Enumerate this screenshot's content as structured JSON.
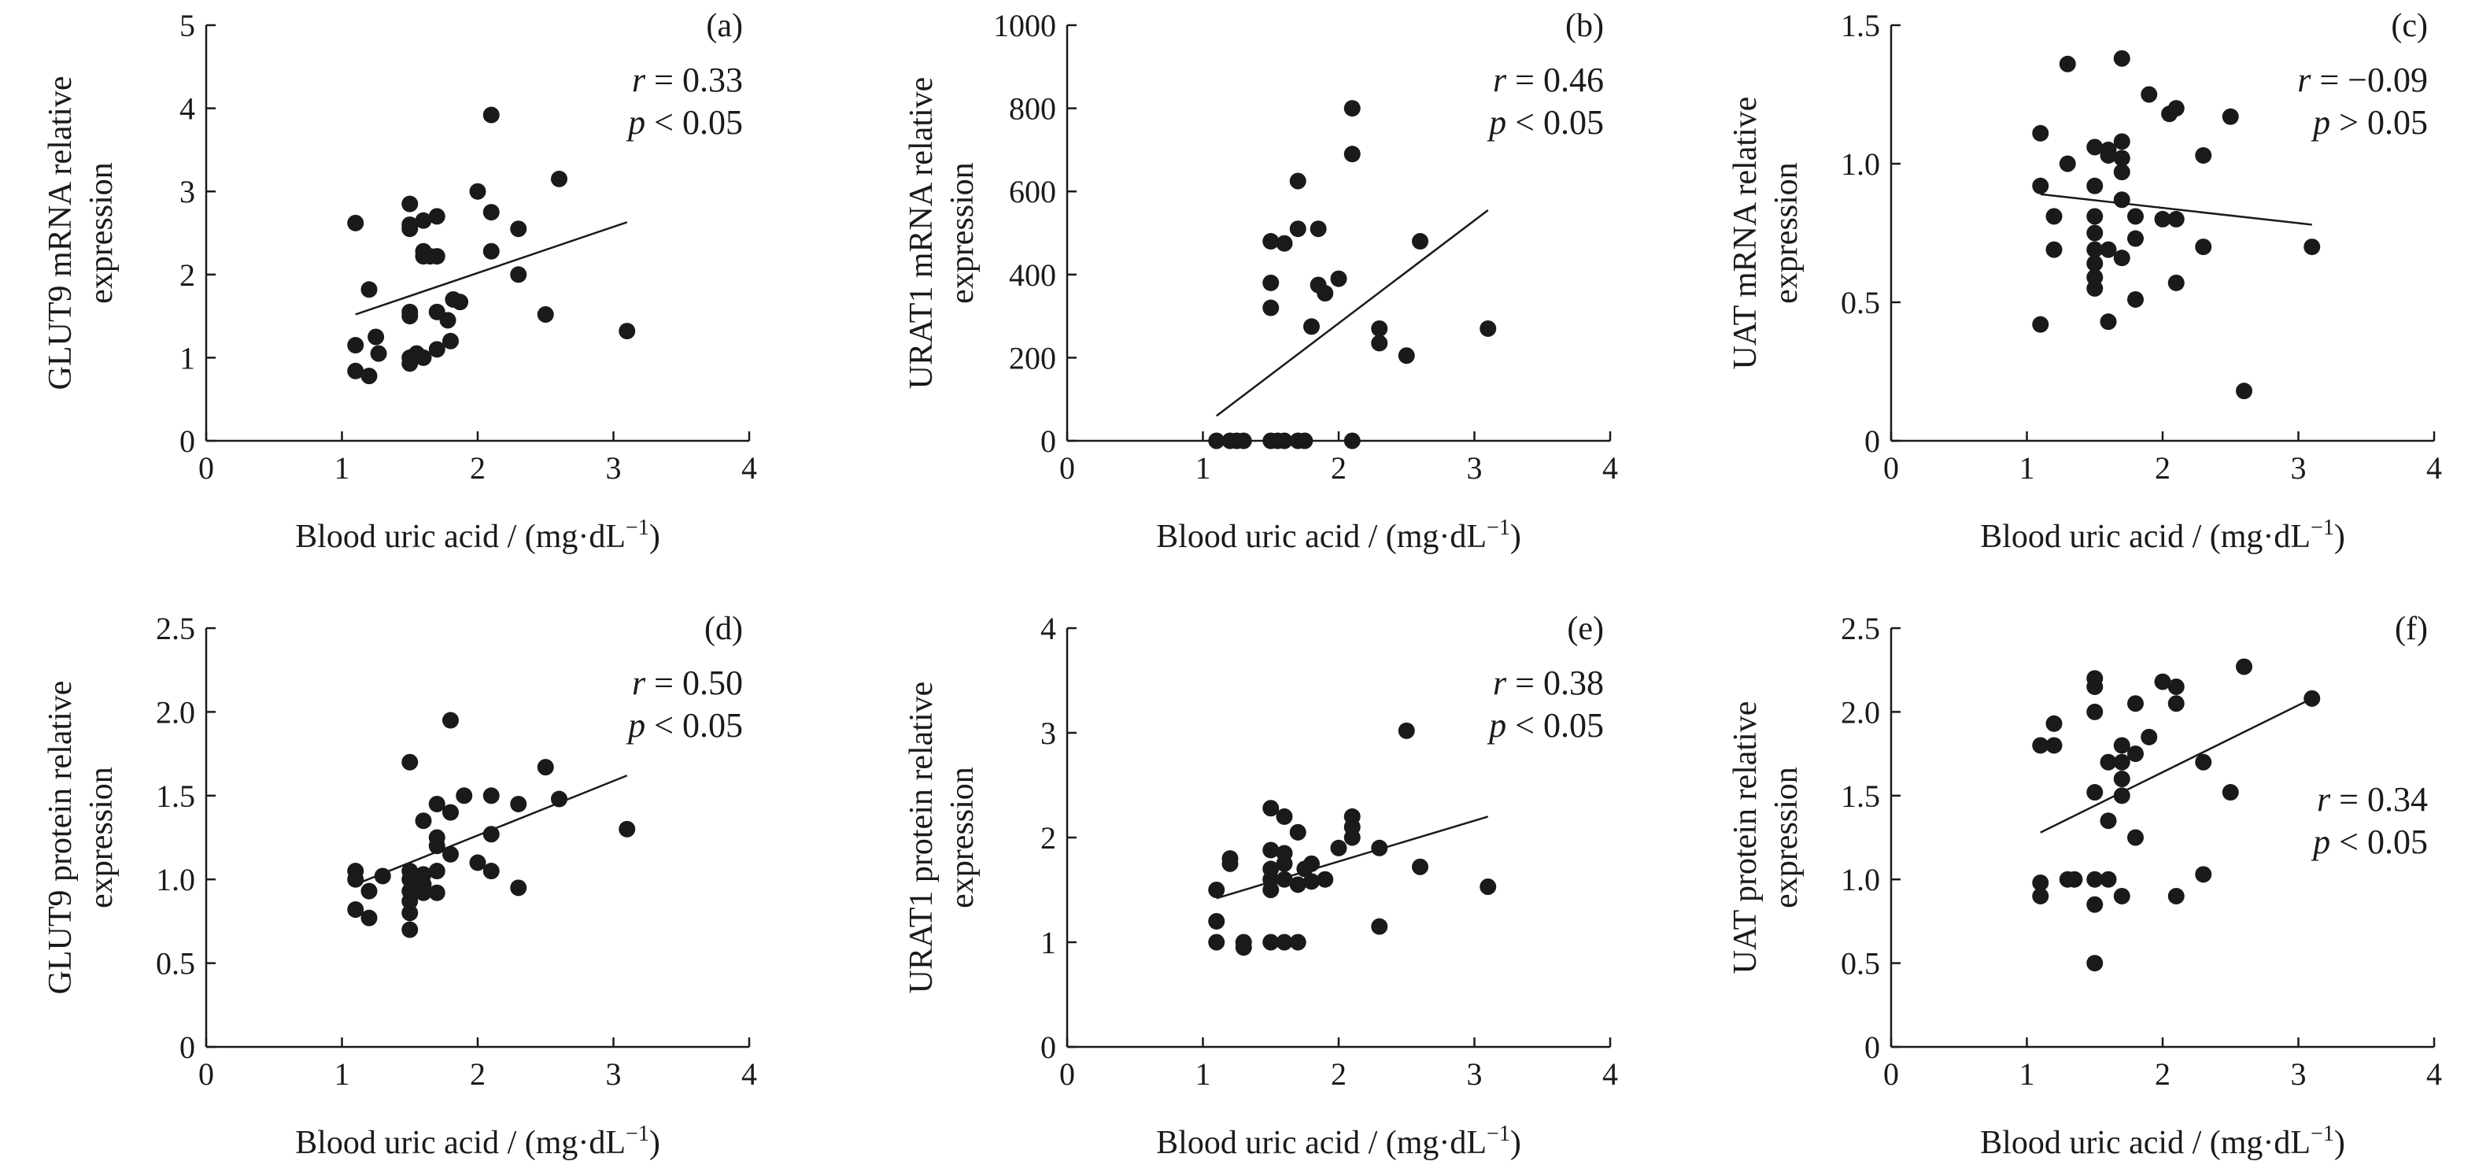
{
  "figure": {
    "xlabel_main": "Blood uric acid / (mg·dL",
    "xlabel_exp": "−1",
    "xlabel_close": ")"
  },
  "chart_data": [
    {
      "id": "a",
      "type": "scatter",
      "tag": "(a)",
      "ylabel": [
        "GLUT9 mRNA relative",
        "expression"
      ],
      "xlim": [
        0,
        4
      ],
      "ylim": [
        0,
        5
      ],
      "xticks": [
        0,
        1,
        2,
        3,
        4
      ],
      "yticks": [
        0,
        1,
        2,
        3,
        4,
        5
      ],
      "ytick_labels": [
        "0",
        "1",
        "2",
        "3",
        "4",
        "5"
      ],
      "stat_r": "r = 0.33",
      "stat_p": "p < 0.05",
      "stat_pos": "top-right",
      "fit": [
        [
          1.1,
          1.52
        ],
        [
          3.1,
          2.63
        ]
      ],
      "points": [
        [
          1.1,
          2.62
        ],
        [
          1.1,
          1.15
        ],
        [
          1.1,
          0.84
        ],
        [
          1.2,
          1.82
        ],
        [
          1.2,
          0.78
        ],
        [
          1.25,
          1.25
        ],
        [
          1.27,
          1.05
        ],
        [
          1.5,
          2.85
        ],
        [
          1.5,
          2.6
        ],
        [
          1.5,
          2.55
        ],
        [
          1.5,
          1.55
        ],
        [
          1.5,
          1.5
        ],
        [
          1.5,
          1.0
        ],
        [
          1.5,
          0.93
        ],
        [
          1.55,
          1.05
        ],
        [
          1.6,
          2.65
        ],
        [
          1.6,
          2.28
        ],
        [
          1.6,
          2.22
        ],
        [
          1.6,
          1.0
        ],
        [
          1.65,
          2.22
        ],
        [
          1.7,
          2.7
        ],
        [
          1.7,
          2.22
        ],
        [
          1.7,
          1.55
        ],
        [
          1.7,
          1.1
        ],
        [
          1.78,
          1.45
        ],
        [
          1.8,
          1.2
        ],
        [
          1.82,
          1.7
        ],
        [
          1.87,
          1.67
        ],
        [
          2.0,
          3.0
        ],
        [
          2.1,
          3.92
        ],
        [
          2.1,
          2.75
        ],
        [
          2.1,
          2.28
        ],
        [
          2.3,
          2.55
        ],
        [
          2.3,
          2.0
        ],
        [
          2.5,
          1.52
        ],
        [
          2.6,
          3.15
        ],
        [
          3.1,
          1.32
        ]
      ]
    },
    {
      "id": "b",
      "type": "scatter",
      "tag": "(b)",
      "ylabel": [
        "URAT1 mRNA relative",
        "expression"
      ],
      "xlim": [
        0,
        4
      ],
      "ylim": [
        0,
        1000
      ],
      "xticks": [
        0,
        1,
        2,
        3,
        4
      ],
      "yticks": [
        0,
        200,
        400,
        600,
        800,
        1000
      ],
      "ytick_labels": [
        "0",
        "200",
        "400",
        "600",
        "800",
        "1000"
      ],
      "stat_r": "r = 0.46",
      "stat_p": "p < 0.05",
      "stat_pos": "top-right",
      "fit": [
        [
          1.1,
          60
        ],
        [
          3.1,
          555
        ]
      ],
      "points": [
        [
          1.1,
          0
        ],
        [
          1.2,
          0
        ],
        [
          1.25,
          0
        ],
        [
          1.3,
          0
        ],
        [
          1.5,
          0
        ],
        [
          1.55,
          0
        ],
        [
          1.6,
          0
        ],
        [
          1.7,
          0
        ],
        [
          1.75,
          0
        ],
        [
          2.1,
          0
        ],
        [
          1.5,
          480
        ],
        [
          1.6,
          475
        ],
        [
          1.5,
          380
        ],
        [
          1.5,
          320
        ],
        [
          1.7,
          625
        ],
        [
          1.7,
          510
        ],
        [
          1.85,
          510
        ],
        [
          1.8,
          275
        ],
        [
          1.85,
          375
        ],
        [
          1.9,
          355
        ],
        [
          2.0,
          390
        ],
        [
          2.1,
          800
        ],
        [
          2.1,
          690
        ],
        [
          2.3,
          270
        ],
        [
          2.3,
          235
        ],
        [
          2.5,
          205
        ],
        [
          2.6,
          480
        ],
        [
          3.1,
          270
        ]
      ]
    },
    {
      "id": "c",
      "type": "scatter",
      "tag": "(c)",
      "ylabel": [
        "UAT mRNA relative",
        "expression"
      ],
      "xlim": [
        0,
        4
      ],
      "ylim": [
        0,
        1.5
      ],
      "xticks": [
        0,
        1,
        2,
        3,
        4
      ],
      "yticks": [
        0,
        0.5,
        1.0,
        1.5
      ],
      "ytick_labels": [
        "0",
        "0.5",
        "1.0",
        "1.5"
      ],
      "stat_r": "r = −0.09",
      "stat_p": "p > 0.05",
      "stat_pos": "top-right",
      "fit": [
        [
          1.1,
          0.89
        ],
        [
          3.1,
          0.78
        ]
      ],
      "points": [
        [
          1.1,
          1.11
        ],
        [
          1.1,
          0.92
        ],
        [
          1.1,
          0.42
        ],
        [
          1.2,
          0.81
        ],
        [
          1.2,
          0.69
        ],
        [
          1.3,
          1.36
        ],
        [
          1.3,
          1.0
        ],
        [
          1.5,
          1.06
        ],
        [
          1.5,
          0.92
        ],
        [
          1.5,
          0.81
        ],
        [
          1.5,
          0.75
        ],
        [
          1.5,
          0.69
        ],
        [
          1.5,
          0.64
        ],
        [
          1.5,
          0.59
        ],
        [
          1.5,
          0.55
        ],
        [
          1.6,
          1.05
        ],
        [
          1.6,
          1.03
        ],
        [
          1.6,
          0.69
        ],
        [
          1.6,
          0.43
        ],
        [
          1.7,
          1.38
        ],
        [
          1.7,
          1.08
        ],
        [
          1.7,
          1.02
        ],
        [
          1.7,
          0.97
        ],
        [
          1.7,
          0.87
        ],
        [
          1.7,
          0.66
        ],
        [
          1.8,
          0.81
        ],
        [
          1.8,
          0.73
        ],
        [
          1.8,
          0.51
        ],
        [
          1.9,
          1.25
        ],
        [
          2.0,
          0.8
        ],
        [
          2.05,
          1.18
        ],
        [
          2.1,
          1.2
        ],
        [
          2.1,
          0.8
        ],
        [
          2.1,
          0.57
        ],
        [
          2.3,
          1.03
        ],
        [
          2.3,
          0.7
        ],
        [
          2.5,
          1.17
        ],
        [
          2.6,
          0.18
        ],
        [
          3.1,
          0.7
        ]
      ]
    },
    {
      "id": "d",
      "type": "scatter",
      "tag": "(d)",
      "ylabel": [
        "GLUT9 protein relative",
        "expression"
      ],
      "xlim": [
        0,
        4
      ],
      "ylim": [
        0,
        2.5
      ],
      "xticks": [
        0,
        1,
        2,
        3,
        4
      ],
      "yticks": [
        0,
        0.5,
        1.0,
        1.5,
        2.0,
        2.5
      ],
      "ytick_labels": [
        "0",
        "0.5",
        "1.0",
        "1.5",
        "2.0",
        "2.5"
      ],
      "stat_r": "r = 0.50",
      "stat_p": "p < 0.05",
      "stat_pos": "top-right",
      "fit": [
        [
          1.1,
          0.97
        ],
        [
          3.1,
          1.62
        ]
      ],
      "points": [
        [
          1.1,
          1.05
        ],
        [
          1.1,
          1.0
        ],
        [
          1.1,
          0.82
        ],
        [
          1.2,
          0.93
        ],
        [
          1.2,
          0.77
        ],
        [
          1.3,
          1.02
        ],
        [
          1.5,
          1.7
        ],
        [
          1.5,
          1.05
        ],
        [
          1.5,
          1.0
        ],
        [
          1.5,
          0.93
        ],
        [
          1.5,
          0.87
        ],
        [
          1.5,
          0.8
        ],
        [
          1.5,
          0.7
        ],
        [
          1.6,
          1.35
        ],
        [
          1.6,
          1.03
        ],
        [
          1.6,
          0.97
        ],
        [
          1.6,
          0.92
        ],
        [
          1.7,
          1.45
        ],
        [
          1.7,
          1.25
        ],
        [
          1.7,
          1.2
        ],
        [
          1.7,
          1.05
        ],
        [
          1.7,
          0.92
        ],
        [
          1.8,
          1.95
        ],
        [
          1.8,
          1.4
        ],
        [
          1.8,
          1.15
        ],
        [
          1.9,
          1.5
        ],
        [
          2.0,
          1.1
        ],
        [
          2.1,
          1.5
        ],
        [
          2.1,
          1.27
        ],
        [
          2.1,
          1.05
        ],
        [
          2.3,
          1.45
        ],
        [
          2.3,
          0.95
        ],
        [
          2.5,
          1.67
        ],
        [
          2.6,
          1.48
        ],
        [
          3.1,
          1.3
        ]
      ]
    },
    {
      "id": "e",
      "type": "scatter",
      "tag": "(e)",
      "ylabel": [
        "URAT1 protein relative",
        "expression"
      ],
      "xlim": [
        0,
        4
      ],
      "ylim": [
        0,
        4
      ],
      "xticks": [
        0,
        1,
        2,
        3,
        4
      ],
      "yticks": [
        0,
        1,
        2,
        3,
        4
      ],
      "ytick_labels": [
        "0",
        "1",
        "2",
        "3",
        "4"
      ],
      "stat_r": "r = 0.38",
      "stat_p": "p < 0.05",
      "stat_pos": "top-right",
      "fit": [
        [
          1.1,
          1.42
        ],
        [
          3.1,
          2.2
        ]
      ],
      "points": [
        [
          1.1,
          1.5
        ],
        [
          1.1,
          1.2
        ],
        [
          1.1,
          1.0
        ],
        [
          1.2,
          1.8
        ],
        [
          1.2,
          1.75
        ],
        [
          1.3,
          1.0
        ],
        [
          1.3,
          0.95
        ],
        [
          1.5,
          2.28
        ],
        [
          1.5,
          1.88
        ],
        [
          1.5,
          1.7
        ],
        [
          1.5,
          1.6
        ],
        [
          1.5,
          1.5
        ],
        [
          1.5,
          1.0
        ],
        [
          1.6,
          2.2
        ],
        [
          1.6,
          1.85
        ],
        [
          1.6,
          1.75
        ],
        [
          1.6,
          1.6
        ],
        [
          1.6,
          1.0
        ],
        [
          1.7,
          2.05
        ],
        [
          1.7,
          1.55
        ],
        [
          1.7,
          1.0
        ],
        [
          1.75,
          1.7
        ],
        [
          1.8,
          1.75
        ],
        [
          1.8,
          1.58
        ],
        [
          1.9,
          1.6
        ],
        [
          2.0,
          1.9
        ],
        [
          2.1,
          2.2
        ],
        [
          2.1,
          2.1
        ],
        [
          2.1,
          2.0
        ],
        [
          2.3,
          1.15
        ],
        [
          2.3,
          1.9
        ],
        [
          2.5,
          3.02
        ],
        [
          2.6,
          1.72
        ],
        [
          3.1,
          1.53
        ]
      ]
    },
    {
      "id": "f",
      "type": "scatter",
      "tag": "(f)",
      "ylabel": [
        "UAT protein relative",
        "expression"
      ],
      "xlim": [
        0,
        4
      ],
      "ylim": [
        0,
        2.5
      ],
      "xticks": [
        0,
        1,
        2,
        3,
        4
      ],
      "yticks": [
        0,
        0.5,
        1.0,
        1.5,
        2.0,
        2.5
      ],
      "ytick_labels": [
        "0",
        "0.5",
        "1.0",
        "1.5",
        "2.0",
        "2.5"
      ],
      "stat_r": "r = 0.34",
      "stat_p": "p < 0.05",
      "stat_pos": "mid-right",
      "fit": [
        [
          1.1,
          1.28
        ],
        [
          3.1,
          2.08
        ]
      ],
      "points": [
        [
          1.1,
          1.8
        ],
        [
          1.1,
          0.98
        ],
        [
          1.1,
          0.9
        ],
        [
          1.2,
          1.93
        ],
        [
          1.2,
          1.8
        ],
        [
          1.3,
          1.0
        ],
        [
          1.35,
          1.0
        ],
        [
          1.5,
          2.2
        ],
        [
          1.5,
          2.15
        ],
        [
          1.5,
          2.0
        ],
        [
          1.5,
          1.52
        ],
        [
          1.5,
          1.0
        ],
        [
          1.5,
          0.85
        ],
        [
          1.5,
          0.5
        ],
        [
          1.6,
          1.7
        ],
        [
          1.6,
          1.35
        ],
        [
          1.6,
          1.0
        ],
        [
          1.7,
          1.8
        ],
        [
          1.7,
          1.7
        ],
        [
          1.7,
          1.6
        ],
        [
          1.7,
          1.5
        ],
        [
          1.7,
          0.9
        ],
        [
          1.8,
          2.05
        ],
        [
          1.8,
          1.75
        ],
        [
          1.8,
          1.25
        ],
        [
          1.9,
          1.85
        ],
        [
          2.0,
          2.18
        ],
        [
          2.1,
          2.15
        ],
        [
          2.1,
          2.05
        ],
        [
          2.1,
          0.9
        ],
        [
          2.3,
          1.7
        ],
        [
          2.3,
          1.03
        ],
        [
          2.5,
          1.52
        ],
        [
          2.6,
          2.27
        ],
        [
          3.1,
          2.08
        ]
      ]
    }
  ]
}
